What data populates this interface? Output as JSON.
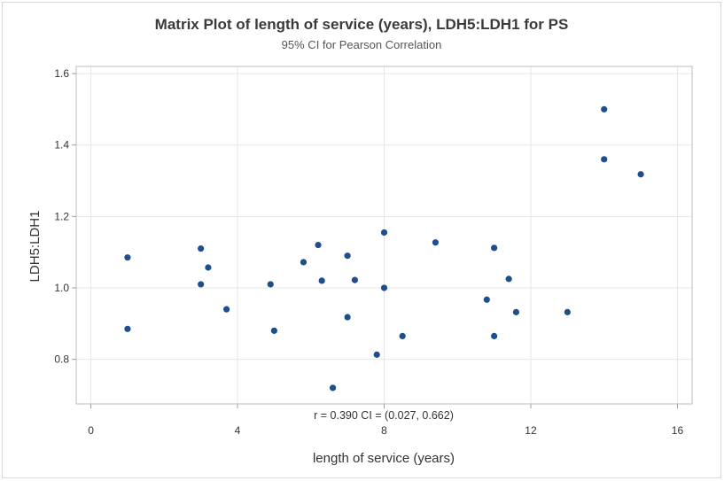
{
  "chart_data": {
    "type": "scatter",
    "title": "Matrix Plot of length of service (years), LDH5:LDH1 for PS",
    "subtitle": "95% CI for Pearson Correlation",
    "xlabel": "length of service (years)",
    "ylabel": "LDH5:LDH1",
    "xlim": [
      -0.4,
      16.4
    ],
    "ylim": [
      0.675,
      1.62
    ],
    "xticks": [
      0,
      4,
      8,
      12,
      16
    ],
    "yticks": [
      0.8,
      1.0,
      1.2,
      1.4,
      1.6
    ],
    "xtick_labels": [
      "0",
      "4",
      "8",
      "12",
      "16"
    ],
    "ytick_labels": [
      "0.8",
      "1.0",
      "1.2",
      "1.4",
      "1.6"
    ],
    "grid": true,
    "point_color": "#1f4e8c",
    "correlation_text": "r = 0.390  CI = (0.027, 0.662)",
    "points": [
      {
        "x": 1.0,
        "y": 1.085
      },
      {
        "x": 1.0,
        "y": 0.885
      },
      {
        "x": 3.0,
        "y": 1.11
      },
      {
        "x": 3.0,
        "y": 1.01
      },
      {
        "x": 3.2,
        "y": 1.057
      },
      {
        "x": 3.7,
        "y": 0.94
      },
      {
        "x": 4.9,
        "y": 1.01
      },
      {
        "x": 5.0,
        "y": 0.88
      },
      {
        "x": 5.8,
        "y": 1.072
      },
      {
        "x": 6.2,
        "y": 1.12
      },
      {
        "x": 6.3,
        "y": 1.02
      },
      {
        "x": 6.6,
        "y": 0.72
      },
      {
        "x": 7.0,
        "y": 1.09
      },
      {
        "x": 7.0,
        "y": 0.918
      },
      {
        "x": 7.2,
        "y": 1.022
      },
      {
        "x": 7.8,
        "y": 0.813
      },
      {
        "x": 8.0,
        "y": 1.155
      },
      {
        "x": 8.0,
        "y": 1.0
      },
      {
        "x": 8.5,
        "y": 0.865
      },
      {
        "x": 9.4,
        "y": 1.127
      },
      {
        "x": 10.8,
        "y": 0.967
      },
      {
        "x": 11.0,
        "y": 1.112
      },
      {
        "x": 11.0,
        "y": 0.865
      },
      {
        "x": 11.4,
        "y": 1.025
      },
      {
        "x": 11.6,
        "y": 0.932
      },
      {
        "x": 13.0,
        "y": 0.932
      },
      {
        "x": 14.0,
        "y": 1.5
      },
      {
        "x": 14.0,
        "y": 1.36
      },
      {
        "x": 15.0,
        "y": 1.318
      }
    ]
  }
}
